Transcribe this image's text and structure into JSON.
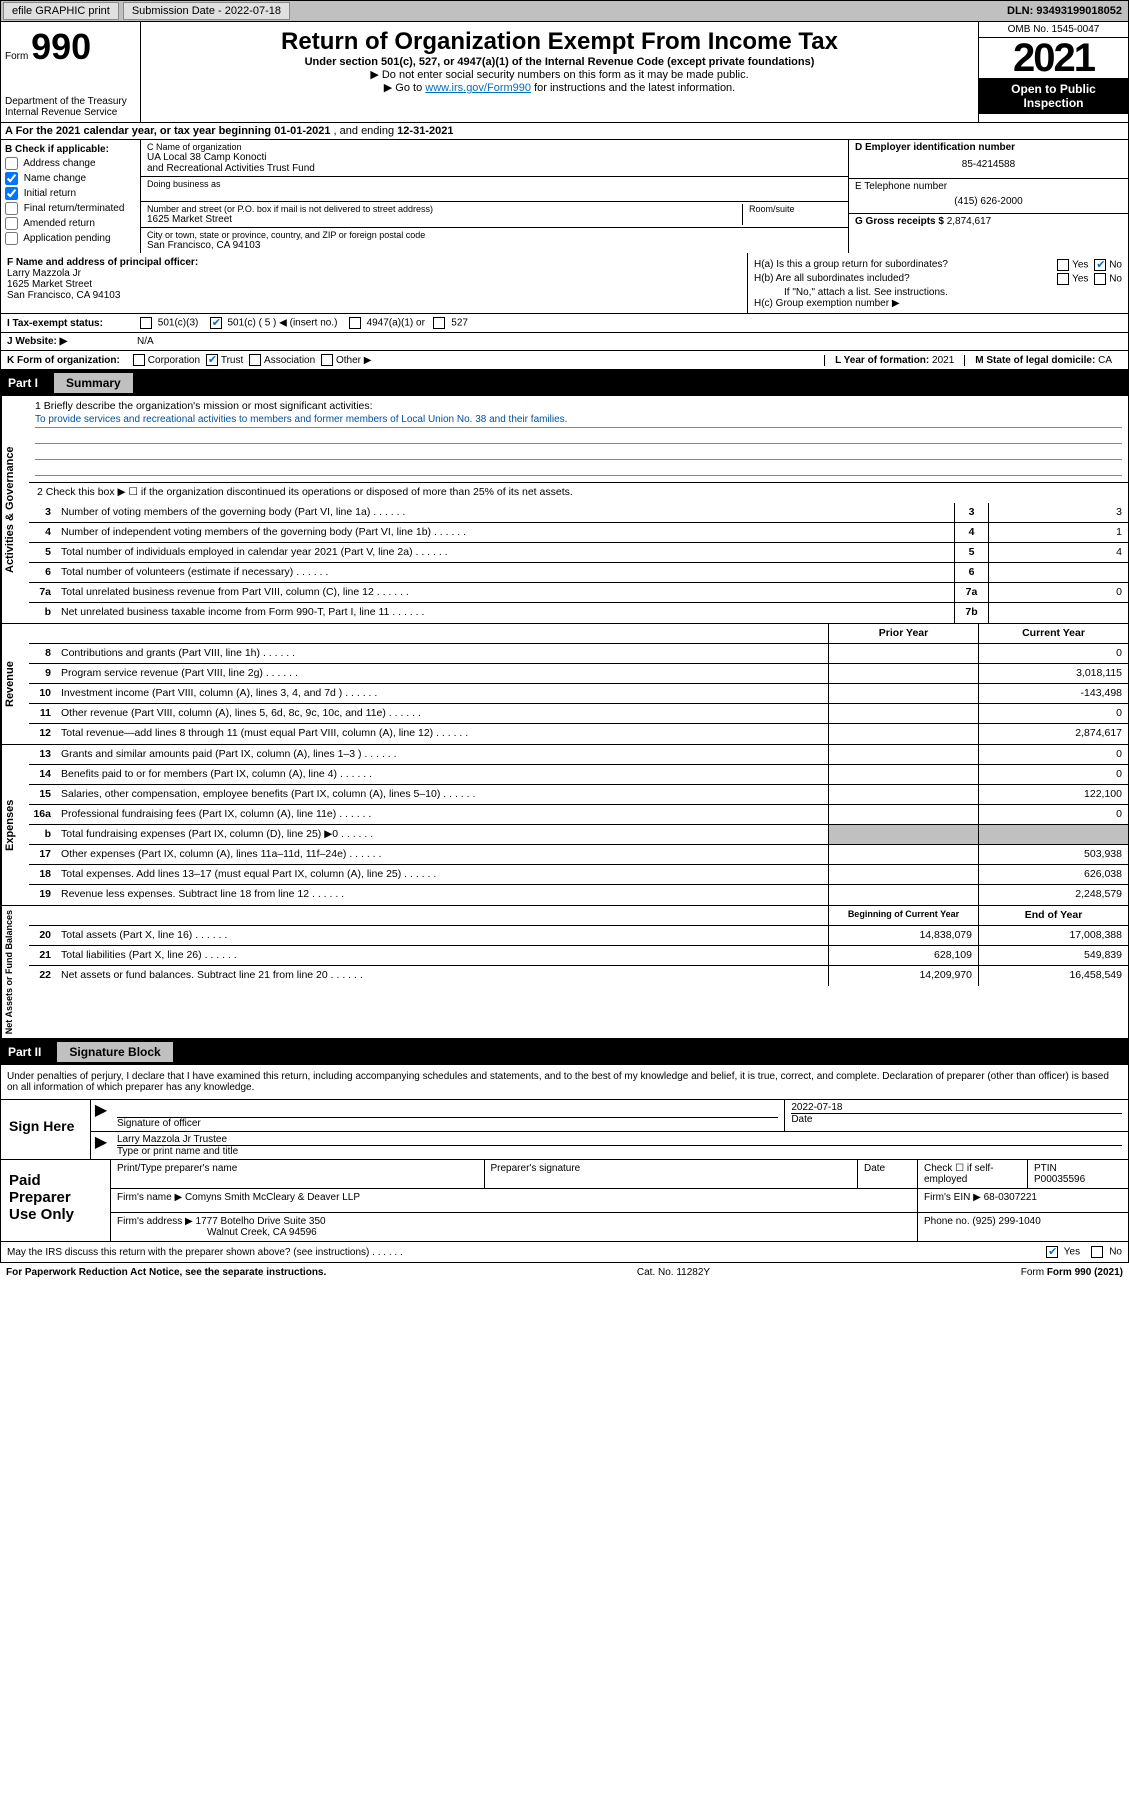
{
  "topbar": {
    "efile_label": "efile GRAPHIC print",
    "submission_label": "Submission Date - 2022-07-18",
    "dln_label": "DLN: 93493199018052"
  },
  "header": {
    "form_label": "Form",
    "form_number": "990",
    "dept": "Department of the Treasury\nInternal Revenue Service",
    "title": "Return of Organization Exempt From Income Tax",
    "subtitle": "Under section 501(c), 527, or 4947(a)(1) of the Internal Revenue Code (except private foundations)",
    "warn1": "▶ Do not enter social security numbers on this form as it may be made public.",
    "warn2_pre": "▶ Go to ",
    "warn2_link": "www.irs.gov/Form990",
    "warn2_post": " for instructions and the latest information.",
    "omb": "OMB No. 1545-0047",
    "year": "2021",
    "inspect": "Open to Public Inspection"
  },
  "rowA": {
    "text_pre": "A For the 2021 calendar year, or tax year beginning ",
    "begin": "01-01-2021",
    "mid": " , and ending ",
    "end": "12-31-2021"
  },
  "sectionB": {
    "label": "B Check if applicable:",
    "items": [
      {
        "label": "Address change",
        "checked": false
      },
      {
        "label": "Name change",
        "checked": true
      },
      {
        "label": "Initial return",
        "checked": true
      },
      {
        "label": "Final return/terminated",
        "checked": false
      },
      {
        "label": "Amended return",
        "checked": false
      },
      {
        "label": "Application pending",
        "checked": false
      }
    ]
  },
  "sectionC": {
    "name_label": "C Name of organization",
    "name1": "UA Local 38 Camp Konocti",
    "name2": "and Recreational Activities Trust Fund",
    "dba_label": "Doing business as",
    "addr_label": "Number and street (or P.O. box if mail is not delivered to street address)",
    "addr": "1625 Market Street",
    "room_label": "Room/suite",
    "city_label": "City or town, state or province, country, and ZIP or foreign postal code",
    "city": "San Francisco, CA  94103"
  },
  "sectionD": {
    "label": "D Employer identification number",
    "value": "85-4214588"
  },
  "sectionE": {
    "label": "E Telephone number",
    "value": "(415) 626-2000"
  },
  "sectionG": {
    "label": "G Gross receipts $",
    "value": "2,874,617"
  },
  "sectionF": {
    "label": "F Name and address of principal officer:",
    "name": "Larry Mazzola Jr",
    "addr1": "1625 Market Street",
    "addr2": "San Francisco, CA  94103"
  },
  "sectionH": {
    "ha_label": "H(a)  Is this a group return for subordinates?",
    "ha_yes": "Yes",
    "ha_no": "No",
    "hb_label": "H(b)  Are all subordinates included?",
    "hb_yes": "Yes",
    "hb_no": "No",
    "hb_note": "If \"No,\" attach a list. See instructions.",
    "hc_label": "H(c)  Group exemption number ▶"
  },
  "rowI": {
    "label": "I   Tax-exempt status:",
    "opt1": "501(c)(3)",
    "opt2": "501(c) ( 5 ) ◀ (insert no.)",
    "opt3": "4947(a)(1) or",
    "opt4": "527"
  },
  "rowJ": {
    "label": "J   Website: ▶",
    "value": "N/A"
  },
  "rowK": {
    "label": "K Form of organization:",
    "opts": [
      "Corporation",
      "Trust",
      "Association",
      "Other ▶"
    ],
    "checked_index": 1
  },
  "rowL": {
    "label": "L Year of formation:",
    "value": "2021"
  },
  "rowM": {
    "label": "M State of legal domicile:",
    "value": "CA"
  },
  "part1": {
    "num": "Part I",
    "title": "Summary"
  },
  "summary": {
    "q1_label": "1   Briefly describe the organization's mission or most significant activities:",
    "q1_text": "To provide services and recreational activities to members and former members of Local Union No. 38 and their families.",
    "q2": "2   Check this box ▶ ☐  if the organization discontinued its operations or disposed of more than 25% of its net assets.",
    "lines_gov": [
      {
        "n": "3",
        "t": "Number of voting members of the governing body (Part VI, line 1a)",
        "box": "3",
        "v": "3"
      },
      {
        "n": "4",
        "t": "Number of independent voting members of the governing body (Part VI, line 1b)",
        "box": "4",
        "v": "1"
      },
      {
        "n": "5",
        "t": "Total number of individuals employed in calendar year 2021 (Part V, line 2a)",
        "box": "5",
        "v": "4"
      },
      {
        "n": "6",
        "t": "Total number of volunteers (estimate if necessary)",
        "box": "6",
        "v": ""
      },
      {
        "n": "7a",
        "t": "Total unrelated business revenue from Part VIII, column (C), line 12",
        "box": "7a",
        "v": "0"
      },
      {
        "n": "b",
        "t": "Net unrelated business taxable income from Form 990-T, Part I, line 11",
        "box": "7b",
        "v": ""
      }
    ],
    "col_hdr_prior": "Prior Year",
    "col_hdr_current": "Current Year",
    "lines_rev": [
      {
        "n": "8",
        "t": "Contributions and grants (Part VIII, line 1h)",
        "p": "",
        "c": "0"
      },
      {
        "n": "9",
        "t": "Program service revenue (Part VIII, line 2g)",
        "p": "",
        "c": "3,018,115"
      },
      {
        "n": "10",
        "t": "Investment income (Part VIII, column (A), lines 3, 4, and 7d )",
        "p": "",
        "c": "-143,498"
      },
      {
        "n": "11",
        "t": "Other revenue (Part VIII, column (A), lines 5, 6d, 8c, 9c, 10c, and 11e)",
        "p": "",
        "c": "0"
      },
      {
        "n": "12",
        "t": "Total revenue—add lines 8 through 11 (must equal Part VIII, column (A), line 12)",
        "p": "",
        "c": "2,874,617"
      }
    ],
    "lines_exp": [
      {
        "n": "13",
        "t": "Grants and similar amounts paid (Part IX, column (A), lines 1–3 )",
        "p": "",
        "c": "0"
      },
      {
        "n": "14",
        "t": "Benefits paid to or for members (Part IX, column (A), line 4)",
        "p": "",
        "c": "0"
      },
      {
        "n": "15",
        "t": "Salaries, other compensation, employee benefits (Part IX, column (A), lines 5–10)",
        "p": "",
        "c": "122,100"
      },
      {
        "n": "16a",
        "t": "Professional fundraising fees (Part IX, column (A), line 11e)",
        "p": "",
        "c": "0"
      },
      {
        "n": "b",
        "t": "Total fundraising expenses (Part IX, column (D), line 25) ▶0",
        "p": "shade",
        "c": "shade"
      },
      {
        "n": "17",
        "t": "Other expenses (Part IX, column (A), lines 11a–11d, 11f–24e)",
        "p": "",
        "c": "503,938"
      },
      {
        "n": "18",
        "t": "Total expenses. Add lines 13–17 (must equal Part IX, column (A), line 25)",
        "p": "",
        "c": "626,038"
      },
      {
        "n": "19",
        "t": "Revenue less expenses. Subtract line 18 from line 12",
        "p": "",
        "c": "2,248,579"
      }
    ],
    "col_hdr_begin": "Beginning of Current Year",
    "col_hdr_end": "End of Year",
    "lines_net": [
      {
        "n": "20",
        "t": "Total assets (Part X, line 16)",
        "p": "14,838,079",
        "c": "17,008,388"
      },
      {
        "n": "21",
        "t": "Total liabilities (Part X, line 26)",
        "p": "628,109",
        "c": "549,839"
      },
      {
        "n": "22",
        "t": "Net assets or fund balances. Subtract line 21 from line 20",
        "p": "14,209,970",
        "c": "16,458,549"
      }
    ],
    "vtab_gov": "Activities & Governance",
    "vtab_rev": "Revenue",
    "vtab_exp": "Expenses",
    "vtab_net": "Net Assets or Fund Balances"
  },
  "part2": {
    "num": "Part II",
    "title": "Signature Block"
  },
  "sig": {
    "intro": "Under penalties of perjury, I declare that I have examined this return, including accompanying schedules and statements, and to the best of my knowledge and belief, it is true, correct, and complete. Declaration of preparer (other than officer) is based on all information of which preparer has any knowledge.",
    "sign_here": "Sign Here",
    "sig_officer_label": "Signature of officer",
    "date_label": "Date",
    "date_val": "2022-07-18",
    "name_title": "Larry Mazzola Jr Trustee",
    "name_title_label": "Type or print name and title"
  },
  "paid": {
    "label": "Paid Preparer Use Only",
    "h_name": "Print/Type preparer's name",
    "h_sig": "Preparer's signature",
    "h_date": "Date",
    "h_check": "Check ☐ if self-employed",
    "h_ptin": "PTIN",
    "ptin": "P00035596",
    "firm_name_label": "Firm's name    ▶",
    "firm_name": "Comyns Smith McCleary & Deaver LLP",
    "firm_ein_label": "Firm's EIN ▶",
    "firm_ein": "68-0307221",
    "firm_addr_label": "Firm's address ▶",
    "firm_addr1": "1777 Botelho Drive Suite 350",
    "firm_addr2": "Walnut Creek, CA  94596",
    "phone_label": "Phone no.",
    "phone": "(925) 299-1040"
  },
  "footer": {
    "discuss": "May the IRS discuss this return with the preparer shown above? (see instructions)",
    "yes": "Yes",
    "no": "No",
    "pra": "For Paperwork Reduction Act Notice, see the separate instructions.",
    "cat": "Cat. No. 11282Y",
    "form": "Form 990 (2021)"
  }
}
